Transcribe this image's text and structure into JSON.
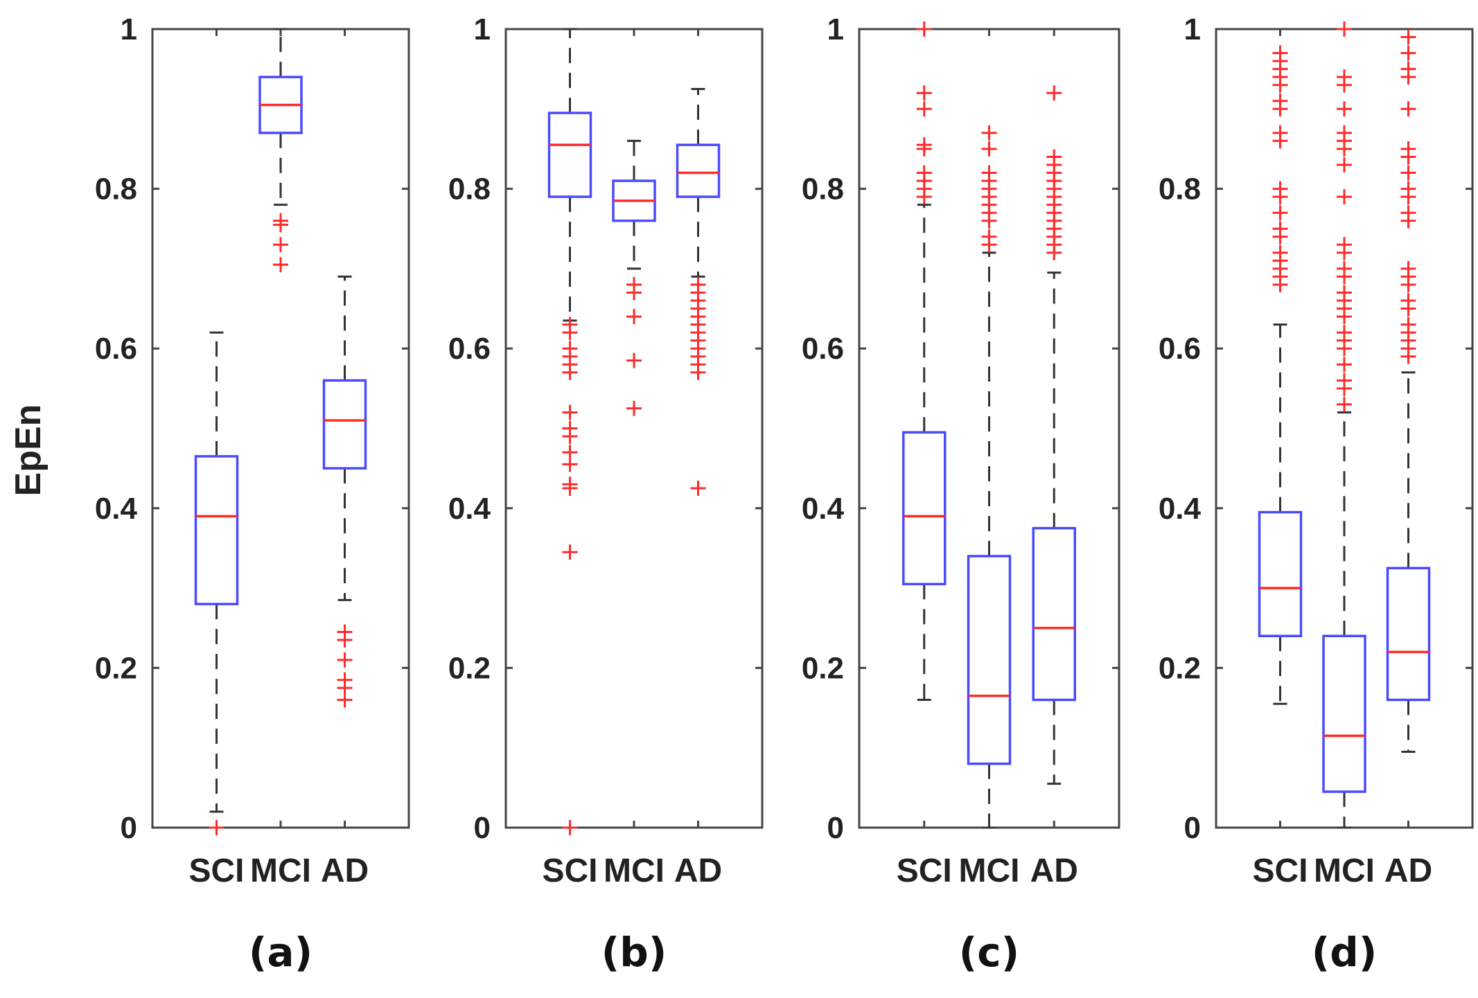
{
  "figure": {
    "ylabel": "EpEn",
    "colors": {
      "box": "#4a4aff",
      "median": "#ff2a2a",
      "whisker": "#333333",
      "outlier": "#ff2a2a",
      "axis": "#444444"
    }
  },
  "chart_data": [
    {
      "type": "box",
      "panel_label": "(a)",
      "categories": [
        "SCI",
        "MCI",
        "AD"
      ],
      "ylim": [
        0,
        1
      ],
      "yticks": [
        "0",
        "0.2",
        "0.4",
        "0.6",
        "0.8",
        "1"
      ],
      "ytick_values": [
        0,
        0.2,
        0.4,
        0.6,
        0.8,
        1
      ],
      "boxes": [
        {
          "whisker_low": 0.02,
          "q1": 0.28,
          "median": 0.39,
          "q3": 0.465,
          "whisker_high": 0.62,
          "outliers": [
            0.0
          ]
        },
        {
          "whisker_low": 0.78,
          "q1": 0.87,
          "median": 0.905,
          "q3": 0.94,
          "whisker_high": 1.0,
          "outliers": [
            0.76,
            0.755,
            0.73,
            0.705
          ]
        },
        {
          "whisker_low": 0.285,
          "q1": 0.45,
          "median": 0.51,
          "q3": 0.56,
          "whisker_high": 0.69,
          "outliers": [
            0.245,
            0.235,
            0.21,
            0.185,
            0.175,
            0.16
          ]
        }
      ]
    },
    {
      "type": "box",
      "panel_label": "(b)",
      "categories": [
        "SCI",
        "MCI",
        "AD"
      ],
      "ylim": [
        0,
        1
      ],
      "yticks": [
        "0",
        "0.2",
        "0.4",
        "0.6",
        "0.8",
        "1"
      ],
      "ytick_values": [
        0,
        0.2,
        0.4,
        0.6,
        0.8,
        1
      ],
      "boxes": [
        {
          "whisker_low": 0.635,
          "q1": 0.79,
          "median": 0.855,
          "q3": 0.895,
          "whisker_high": 1.0,
          "outliers": [
            0.63,
            0.62,
            0.6,
            0.59,
            0.58,
            0.57,
            0.52,
            0.5,
            0.49,
            0.47,
            0.455,
            0.43,
            0.425,
            0.345,
            0.0
          ]
        },
        {
          "whisker_low": 0.7,
          "q1": 0.76,
          "median": 0.785,
          "q3": 0.81,
          "whisker_high": 0.86,
          "outliers": [
            0.68,
            0.67,
            0.64,
            0.585,
            0.525
          ]
        },
        {
          "whisker_low": 0.69,
          "q1": 0.79,
          "median": 0.82,
          "q3": 0.855,
          "whisker_high": 0.925,
          "outliers": [
            0.68,
            0.67,
            0.66,
            0.65,
            0.64,
            0.63,
            0.62,
            0.61,
            0.6,
            0.59,
            0.58,
            0.57,
            0.425
          ]
        }
      ]
    },
    {
      "type": "box",
      "panel_label": "(c)",
      "categories": [
        "SCI",
        "MCI",
        "AD"
      ],
      "ylim": [
        0,
        1
      ],
      "yticks": [
        "0",
        "0.2",
        "0.4",
        "0.6",
        "0.8",
        "1"
      ],
      "ytick_values": [
        0,
        0.2,
        0.4,
        0.6,
        0.8,
        1
      ],
      "boxes": [
        {
          "whisker_low": 0.16,
          "q1": 0.305,
          "median": 0.39,
          "q3": 0.495,
          "whisker_high": 0.78,
          "outliers": [
            1.0,
            0.92,
            0.9,
            0.855,
            0.85,
            0.82,
            0.81,
            0.8,
            0.79
          ]
        },
        {
          "whisker_low": 0.0,
          "q1": 0.08,
          "median": 0.165,
          "q3": 0.34,
          "whisker_high": 0.72,
          "outliers": [
            0.87,
            0.85,
            0.82,
            0.81,
            0.8,
            0.79,
            0.78,
            0.77,
            0.76,
            0.74,
            0.73
          ]
        },
        {
          "whisker_low": 0.055,
          "q1": 0.16,
          "median": 0.25,
          "q3": 0.375,
          "whisker_high": 0.695,
          "outliers": [
            0.92,
            0.84,
            0.83,
            0.82,
            0.81,
            0.8,
            0.79,
            0.78,
            0.77,
            0.76,
            0.75,
            0.74,
            0.73,
            0.72
          ]
        }
      ]
    },
    {
      "type": "box",
      "panel_label": "(d)",
      "categories": [
        "SCI",
        "MCI",
        "AD"
      ],
      "ylim": [
        0,
        1
      ],
      "yticks": [
        "0",
        "0.2",
        "0.4",
        "0.6",
        "0.8",
        "1"
      ],
      "ytick_values": [
        0,
        0.2,
        0.4,
        0.6,
        0.8,
        1
      ],
      "boxes": [
        {
          "whisker_low": 0.155,
          "q1": 0.24,
          "median": 0.3,
          "q3": 0.395,
          "whisker_high": 0.63,
          "outliers": [
            0.97,
            0.96,
            0.95,
            0.94,
            0.93,
            0.91,
            0.9,
            0.87,
            0.86,
            0.8,
            0.79,
            0.77,
            0.75,
            0.74,
            0.72,
            0.71,
            0.7,
            0.69,
            0.68
          ]
        },
        {
          "whisker_low": 0.0,
          "q1": 0.045,
          "median": 0.115,
          "q3": 0.24,
          "whisker_high": 0.52,
          "outliers": [
            1.0,
            0.94,
            0.93,
            0.9,
            0.87,
            0.86,
            0.85,
            0.83,
            0.79,
            0.73,
            0.72,
            0.7,
            0.69,
            0.67,
            0.66,
            0.65,
            0.64,
            0.62,
            0.61,
            0.6,
            0.58,
            0.56,
            0.55,
            0.53
          ]
        },
        {
          "whisker_low": 0.095,
          "q1": 0.16,
          "median": 0.22,
          "q3": 0.325,
          "whisker_high": 0.57,
          "outliers": [
            0.99,
            0.97,
            0.95,
            0.94,
            0.9,
            0.85,
            0.84,
            0.82,
            0.8,
            0.79,
            0.77,
            0.76,
            0.7,
            0.69,
            0.68,
            0.66,
            0.65,
            0.63,
            0.62,
            0.61,
            0.6,
            0.59
          ]
        }
      ]
    }
  ]
}
